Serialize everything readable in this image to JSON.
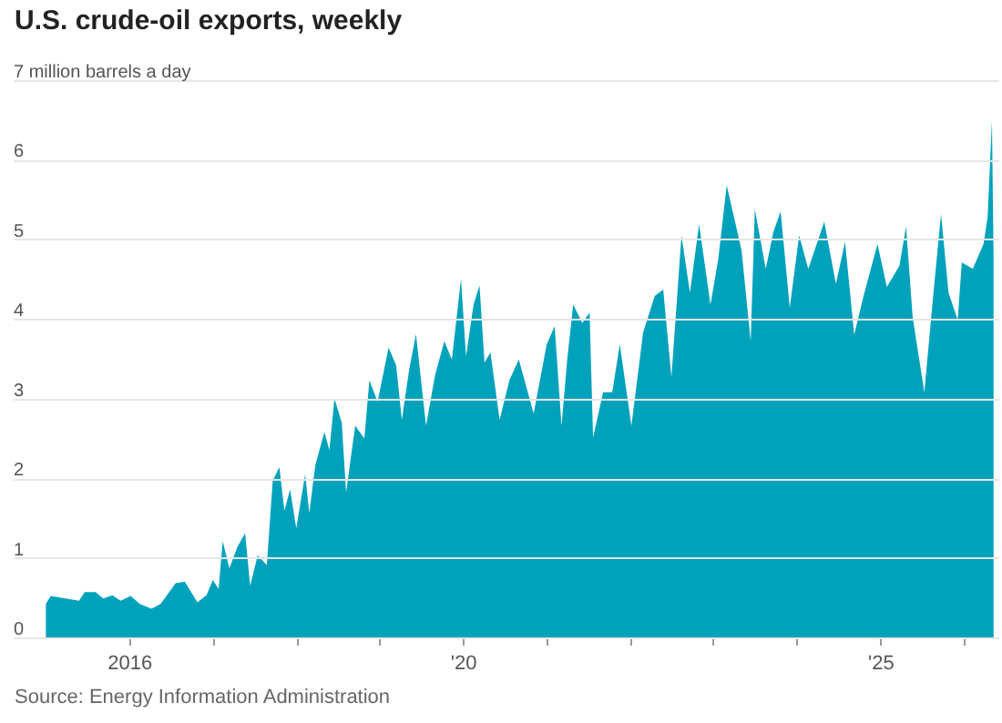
{
  "chart_data": {
    "type": "area",
    "title": "U.S. crude-oil exports, weekly",
    "annotations": [
      "Source: Energy Information Administration"
    ],
    "x": [
      "2015-01-02",
      "2015-01-23",
      "2015-03-29",
      "2015-05-27",
      "2015-06-21",
      "2015-08-08",
      "2015-09-10",
      "2015-10-20",
      "2015-11-25",
      "2016-01-08",
      "2016-02-17",
      "2016-04-08",
      "2016-05-18",
      "2016-07-23",
      "2016-09-01",
      "2016-10-26",
      "2016-12-05",
      "2017-01-02",
      "2017-01-27",
      "2017-02-14",
      "2017-03-15",
      "2017-04-20",
      "2017-05-23",
      "2017-06-14",
      "2017-07-17",
      "2017-08-26",
      "2017-09-21",
      "2017-10-20",
      "2017-11-11",
      "2017-12-06",
      "2018-01-02",
      "2018-02-10",
      "2018-02-28",
      "2018-03-26",
      "2018-05-05",
      "2018-05-27",
      "2018-06-18",
      "2018-07-20",
      "2018-08-08",
      "2018-09-17",
      "2018-10-27",
      "2018-11-18",
      "2018-12-24",
      "2019-02-10",
      "2019-03-15",
      "2019-04-09",
      "2019-05-12",
      "2019-06-10",
      "2019-07-24",
      "2019-09-02",
      "2019-10-12",
      "2019-11-14",
      "2019-12-24",
      "2020-01-15",
      "2020-02-17",
      "2020-03-14",
      "2020-04-05",
      "2020-05-01",
      "2020-06-10",
      "2020-07-23",
      "2020-09-02",
      "2020-11-06",
      "2021-01-02",
      "2021-02-06",
      "2021-03-08",
      "2021-04-02",
      "2021-04-28",
      "2021-06-07",
      "2021-07-09",
      "2021-07-24",
      "2021-09-06",
      "2021-10-16",
      "2021-11-18",
      "2022-01-08",
      "2022-02-28",
      "2022-04-20",
      "2022-05-27",
      "2022-07-02",
      "2022-08-15",
      "2022-09-21",
      "2022-10-31",
      "2022-12-20",
      "2023-01-23",
      "2023-03-01",
      "2023-04-02",
      "2023-05-05",
      "2023-06-14",
      "2023-07-02",
      "2023-08-19",
      "2023-09-21",
      "2023-10-23",
      "2023-12-02",
      "2024-01-12",
      "2024-02-21",
      "2024-05-01",
      "2024-06-21",
      "2024-07-31",
      "2024-09-09",
      "2024-10-20",
      "2024-12-20",
      "2025-01-30",
      "2025-03-26",
      "2025-04-24",
      "2025-05-23",
      "2025-07-13",
      "2025-08-22",
      "2025-09-24",
      "2025-10-27",
      "2025-12-06",
      "2025-12-24",
      "2026-02-10",
      "2026-03-29",
      "2026-04-16",
      "2026-05-05",
      "2026-05-12"
    ],
    "series": [
      {
        "color": "#00a2bb",
        "values": [
          0.42,
          0.52,
          0.49,
          0.46,
          0.57,
          0.57,
          0.49,
          0.53,
          0.46,
          0.52,
          0.42,
          0.36,
          0.42,
          0.68,
          0.7,
          0.44,
          0.53,
          0.72,
          0.61,
          1.21,
          0.87,
          1.14,
          1.31,
          0.65,
          1.03,
          0.91,
          1.97,
          2.14,
          1.59,
          1.86,
          1.37,
          2.05,
          1.56,
          2.16,
          2.58,
          2.35,
          3.0,
          2.7,
          1.82,
          2.66,
          2.5,
          3.23,
          2.96,
          3.64,
          3.42,
          2.73,
          3.38,
          3.81,
          2.66,
          3.3,
          3.72,
          3.49,
          4.5,
          3.53,
          4.18,
          4.42,
          3.45,
          3.58,
          2.73,
          3.23,
          3.49,
          2.81,
          3.68,
          3.91,
          2.66,
          3.49,
          4.18,
          3.95,
          4.08,
          2.51,
          3.08,
          3.08,
          3.68,
          2.66,
          3.83,
          4.29,
          4.37,
          3.27,
          5.05,
          4.33,
          5.19,
          4.18,
          4.75,
          5.68,
          5.28,
          4.86,
          3.72,
          5.38,
          4.63,
          5.09,
          5.35,
          4.14,
          5.05,
          4.63,
          5.22,
          4.44,
          4.97,
          3.8,
          4.29,
          4.94,
          4.4,
          4.67,
          5.16,
          4.02,
          3.08,
          4.33,
          5.32,
          4.33,
          3.99,
          4.71,
          4.63,
          4.94,
          5.28,
          6.49,
          4.78
        ]
      }
    ],
    "xlim": [
      "2014-08-10",
      "2026-06-02"
    ],
    "xticks": [
      {
        "value": "2016",
        "label": "2016"
      },
      {
        "value": "2017",
        "label": null
      },
      {
        "value": "2018",
        "label": null
      },
      {
        "value": "2019",
        "label": null
      },
      {
        "value": "2020",
        "label": "'20"
      },
      {
        "value": "2021",
        "label": null
      },
      {
        "value": "2022",
        "label": null
      },
      {
        "value": "2023",
        "label": null
      },
      {
        "value": "2024",
        "label": null
      },
      {
        "value": "2025",
        "label": "'25"
      },
      {
        "value": "2026",
        "label": null
      }
    ],
    "ylim": [
      0,
      7
    ],
    "yticks": [
      0,
      1,
      2,
      3,
      4,
      5,
      6,
      {
        "value": 7,
        "label": "7 million barrels a day"
      }
    ],
    "grid": "y"
  }
}
